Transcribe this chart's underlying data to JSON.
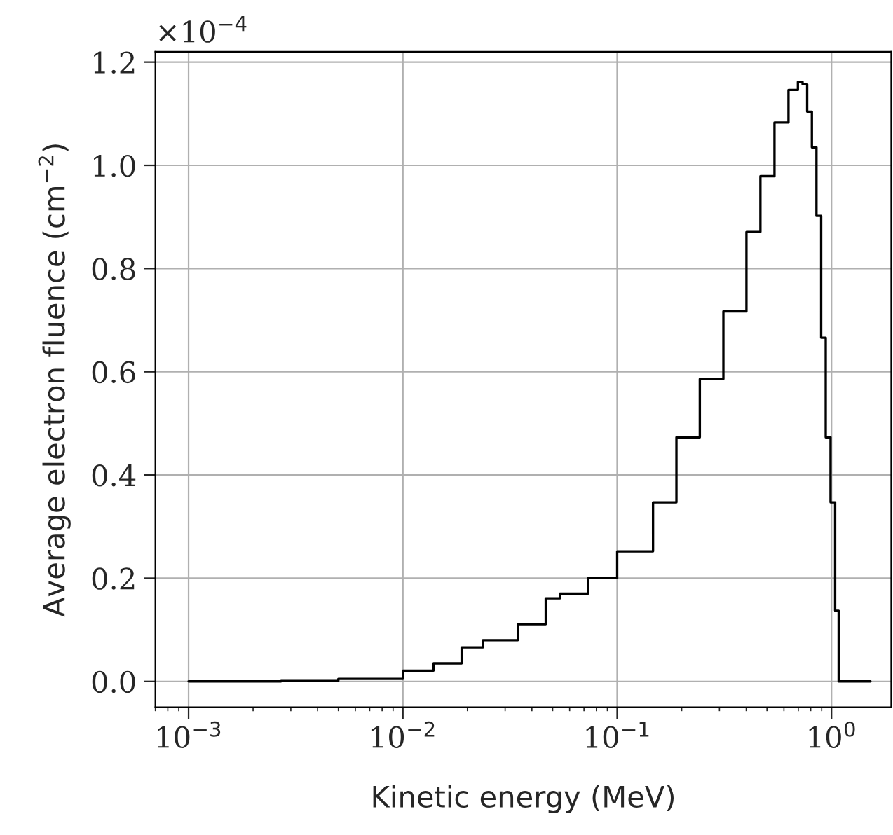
{
  "chart_data": {
    "type": "step",
    "xlabel": "Kinetic energy (MeV)",
    "ylabel": "Average electron fluence (cm$^{−2}$)",
    "annotations": [
      "×10$^{−4}$"
    ],
    "log": "x",
    "grid": true,
    "xlim": [
      0.0007,
      1.9
    ],
    "ylim": [
      -0.05,
      1.22
    ],
    "xticks": [
      {
        "value": 0.001,
        "label": "10$^{−3}$"
      },
      {
        "value": 0.01,
        "label": "10$^{−2}$"
      },
      {
        "value": 0.1,
        "label": "10$^{−1}$"
      },
      {
        "value": 1,
        "label": "10$^{0}$"
      }
    ],
    "yticks": [
      {
        "value": 0,
        "label": "0.0"
      },
      {
        "value": 0.2,
        "label": "0.2"
      },
      {
        "value": 0.4,
        "label": "0.4"
      },
      {
        "value": 0.6,
        "label": "0.6"
      },
      {
        "value": 0.8,
        "label": "0.8"
      },
      {
        "value": 1.0,
        "label": "1.0"
      },
      {
        "value": 1.2,
        "label": "1.2"
      }
    ],
    "x": [
      0.001,
      0.0027,
      0.005,
      0.01,
      0.0139,
      0.0188,
      0.0236,
      0.0344,
      0.0464,
      0.054,
      0.073,
      0.1,
      0.147,
      0.189,
      0.243,
      0.313,
      0.401,
      0.466,
      0.542,
      0.63,
      0.697,
      0.733,
      0.77,
      0.81,
      0.851,
      0.895,
      0.94,
      0.99,
      1.04,
      1.08,
      1.52
    ],
    "series": [
      {
        "color": "#000000",
        "values": [
          0,
          0.001,
          0.005,
          0.021,
          0.035,
          0.066,
          0.08,
          0.111,
          0.161,
          0.17,
          0.2,
          0.252,
          0.347,
          0.473,
          0.586,
          0.717,
          0.871,
          0.979,
          1.083,
          1.146,
          1.162,
          1.157,
          1.104,
          1.035,
          0.902,
          0.666,
          0.473,
          0.347,
          0.137,
          0,
          0
        ]
      }
    ]
  }
}
